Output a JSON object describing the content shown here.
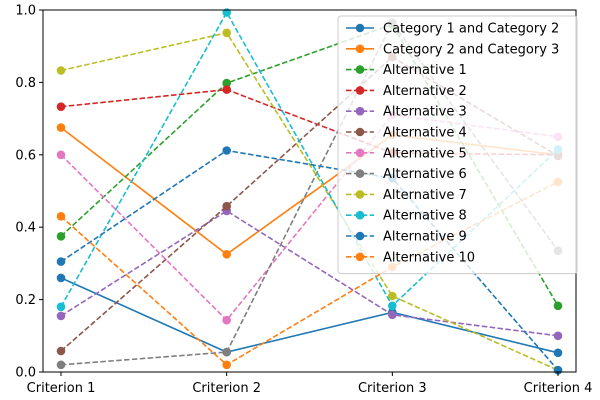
{
  "chart_data": {
    "type": "line",
    "categories": [
      "Criterion 1",
      "Criterion 2",
      "Criterion 3",
      "Criterion 4"
    ],
    "ylim": [
      0,
      1
    ],
    "yticks": [
      0.0,
      0.2,
      0.4,
      0.6,
      0.8,
      1.0
    ],
    "ytick_labels": [
      "0.0",
      "0.2",
      "0.4",
      "0.6",
      "0.8",
      "1.0"
    ],
    "grid": false,
    "legend_position": "upper-right",
    "series": [
      {
        "name": "Category 1 and Category 2",
        "style": "solid",
        "color": "#1f77b4",
        "values": [
          0.26,
          0.055,
          0.165,
          0.053
        ]
      },
      {
        "name": "Category 2 and Category 3",
        "style": "solid",
        "color": "#ff7f0e",
        "values": [
          0.675,
          0.325,
          0.655,
          0.6
        ]
      },
      {
        "name": "Alternative 1",
        "style": "dashed",
        "color": "#2ca02c",
        "values": [
          0.375,
          0.798,
          0.96,
          0.183
        ]
      },
      {
        "name": "Alternative 2",
        "style": "dashed",
        "color": "#d62728",
        "values": [
          0.733,
          0.78,
          0.605,
          0.6
        ]
      },
      {
        "name": "Alternative 3",
        "style": "dashed",
        "color": "#9467bd",
        "values": [
          0.155,
          0.445,
          0.158,
          0.1
        ]
      },
      {
        "name": "Alternative 4",
        "style": "dashed",
        "color": "#8c564b",
        "values": [
          0.058,
          0.458,
          0.87,
          0.597
        ]
      },
      {
        "name": "Alternative 5",
        "style": "dashed",
        "color": "#e377c2",
        "values": [
          0.6,
          0.143,
          0.71,
          0.65
        ]
      },
      {
        "name": "Alternative 6",
        "style": "dashed",
        "color": "#7f7f7f",
        "values": [
          0.02,
          0.055,
          0.965,
          0.335
        ]
      },
      {
        "name": "Alternative 7",
        "style": "dashed",
        "color": "#bcbd22",
        "values": [
          0.833,
          0.937,
          0.21,
          0.005
        ]
      },
      {
        "name": "Alternative 8",
        "style": "dashed",
        "color": "#17becf",
        "values": [
          0.18,
          0.993,
          0.183,
          0.615
        ]
      },
      {
        "name": "Alternative 9",
        "style": "dashed",
        "color": "#1f77b4",
        "values": [
          0.305,
          0.612,
          0.535,
          0.005
        ]
      },
      {
        "name": "Alternative 10",
        "style": "dashed",
        "color": "#ff7f0e",
        "values": [
          0.43,
          0.02,
          0.29,
          0.525
        ]
      }
    ]
  }
}
